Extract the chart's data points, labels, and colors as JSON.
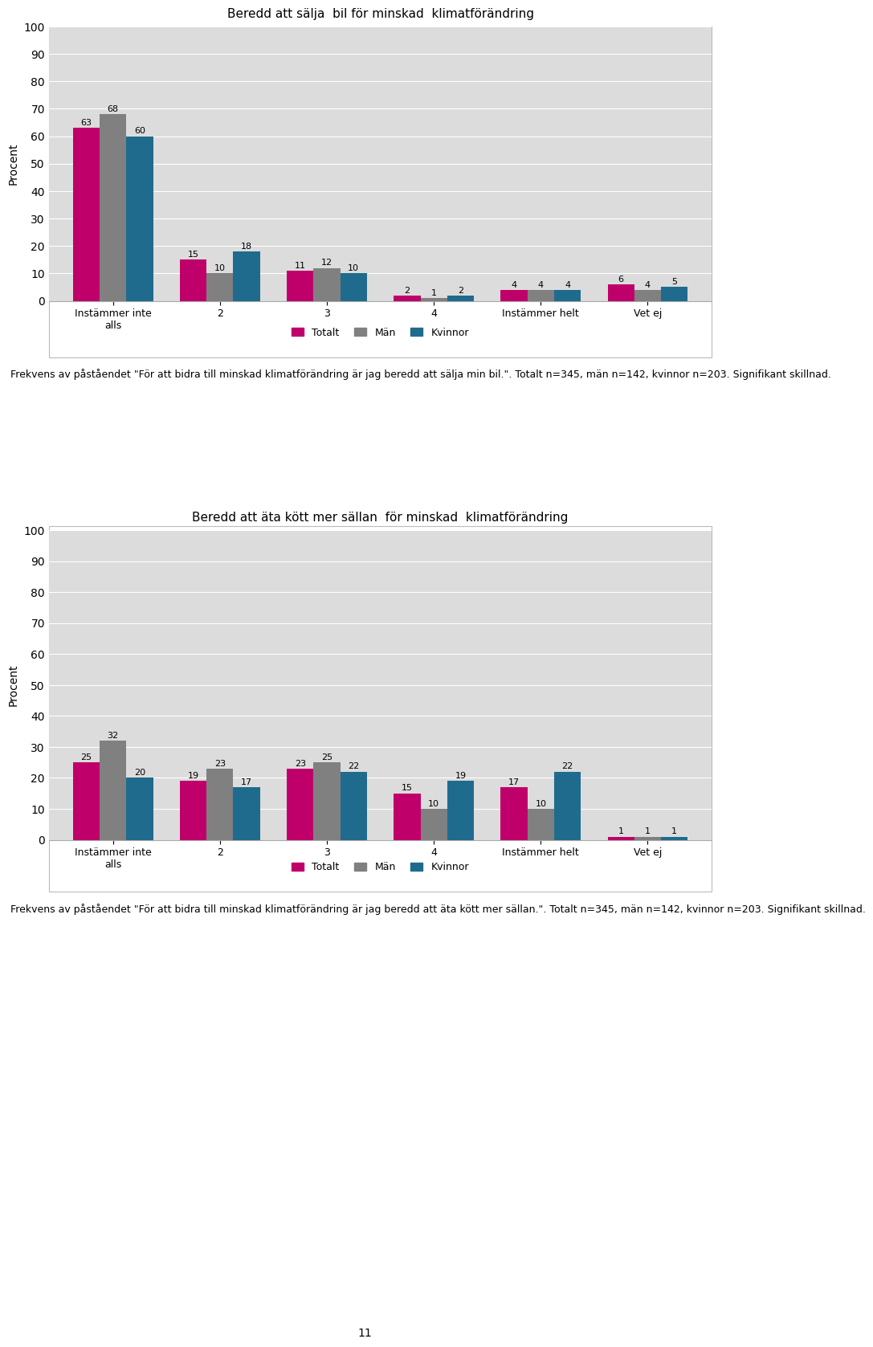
{
  "chart1": {
    "title": "Beredd att sälja  bil för minskad  klimatförändring",
    "categories": [
      "Instämmer inte\nalls",
      "2",
      "3",
      "4",
      "Instämmer helt",
      "Vet ej"
    ],
    "totalt": [
      63,
      15,
      11,
      2,
      4,
      6
    ],
    "man": [
      68,
      10,
      12,
      1,
      4,
      4
    ],
    "kvinnor": [
      60,
      18,
      10,
      2,
      4,
      5
    ],
    "ylim": [
      0,
      100
    ],
    "yticks": [
      0,
      10,
      20,
      30,
      40,
      50,
      60,
      70,
      80,
      90,
      100
    ],
    "ylabel": "Procent",
    "caption": "Frekvens av påståendet \"För att bidra till minskad klimatförändring är jag beredd att sälja min bil.\". Totalt n=345, män n=142, kvinnor n=203. Signifikant skillnad."
  },
  "chart2": {
    "title": "Beredd att äta kött mer sällan  för minskad  klimatförändring",
    "categories": [
      "Instämmer inte\nalls",
      "2",
      "3",
      "4",
      "Instämmer helt",
      "Vet ej"
    ],
    "totalt": [
      25,
      19,
      23,
      15,
      17,
      1
    ],
    "man": [
      32,
      23,
      25,
      10,
      10,
      1
    ],
    "kvinnor": [
      20,
      17,
      22,
      19,
      22,
      1
    ],
    "ylim": [
      0,
      100
    ],
    "yticks": [
      0,
      10,
      20,
      30,
      40,
      50,
      60,
      70,
      80,
      90,
      100
    ],
    "ylabel": "Procent",
    "caption": "Frekvens av påståendet \"För att bidra till minskad klimatförändring är jag beredd att äta kött mer sällan.\". Totalt n=345, män n=142, kvinnor n=203. Signifikant skillnad."
  },
  "colors": {
    "totalt": "#C0006A",
    "man": "#808080",
    "kvinnor": "#1F6B8E"
  },
  "legend_labels": [
    "Totalt",
    "Män",
    "Kvinnor"
  ],
  "bar_width": 0.25,
  "page_number": "11",
  "plot_bg_color": "#DCDCDC",
  "chart_bg_color": "#E8E8E8"
}
